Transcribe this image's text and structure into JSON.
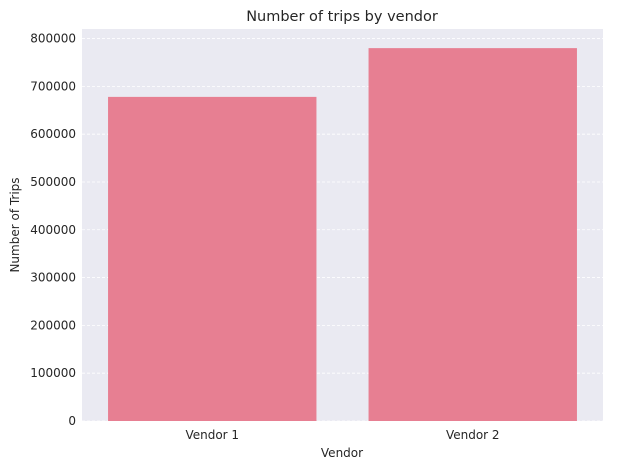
{
  "chart_data": {
    "type": "bar",
    "title": "Number of trips by vendor",
    "xlabel": "Vendor",
    "ylabel": "Number of Trips",
    "categories": [
      "Vendor 1",
      "Vendor 2"
    ],
    "values": [
      678000,
      780000
    ],
    "ylim": [
      0,
      820000
    ],
    "yticks": [
      0,
      100000,
      200000,
      300000,
      400000,
      500000,
      600000,
      700000,
      800000
    ],
    "grid": true,
    "bar_color": "#e77f92",
    "plot_background": "#eaeaf2",
    "grid_color": "#ffffff"
  }
}
